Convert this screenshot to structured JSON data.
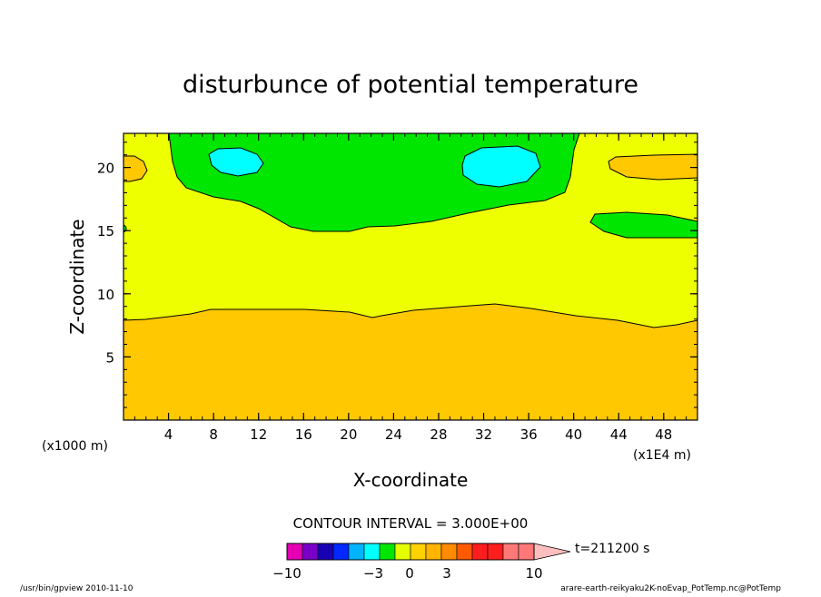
{
  "chart_data": {
    "type": "contour",
    "title": "disturbunce of potential temperature",
    "xlabel": "X-coordinate",
    "ylabel": "Z-coordinate",
    "x_unit_note": "(x1E4 m)",
    "y_unit_note": "(x1000 m)",
    "xlim": [
      0,
      51
    ],
    "ylim": [
      0,
      22.7
    ],
    "x_ticks": [
      "4",
      "8",
      "12",
      "16",
      "20",
      "24",
      "28",
      "32",
      "36",
      "40",
      "44",
      "48"
    ],
    "y_ticks": [
      "5",
      "10",
      "15",
      "20"
    ],
    "contour_interval_text": "CONTOUR INTERVAL = 3.000E+00",
    "colorbar": {
      "tick_labels": [
        "−10",
        "−3",
        "0",
        "3",
        "10"
      ],
      "colors": [
        "#e600b4",
        "#7a00c8",
        "#1a00b4",
        "#0028ff",
        "#00b4ff",
        "#00ffff",
        "#00e600",
        "#e6ff00",
        "#ffd200",
        "#ffb400",
        "#ff8c00",
        "#ff5a00",
        "#ff1e1e",
        "#ff1e1e",
        "#ff7878",
        "#ff7878",
        "#ffbebe"
      ]
    },
    "time_label": "t=211200 s",
    "regions": [
      {
        "name": "low-orange-layer",
        "level_color": "#ffc800",
        "z_top_boundary": [
          [
            0,
            7.9
          ],
          [
            2,
            8.0
          ],
          [
            4,
            8.3
          ],
          [
            6,
            8.5
          ],
          [
            8,
            8.8
          ],
          [
            12,
            8.8
          ],
          [
            16,
            8.8
          ],
          [
            20,
            8.6
          ],
          [
            22.5,
            8.2
          ],
          [
            26,
            8.8
          ],
          [
            30,
            9.1
          ],
          [
            33,
            9.3
          ],
          [
            36,
            8.9
          ],
          [
            40,
            8.4
          ],
          [
            44,
            8.0
          ],
          [
            47,
            7.4
          ],
          [
            49,
            7.6
          ],
          [
            51,
            7.9
          ]
        ]
      },
      {
        "name": "middle-yellow-layer",
        "level_color": "#eeff00"
      },
      {
        "name": "upper-green-region",
        "level_color": "#00e600",
        "z_bottom_boundary": [
          [
            4,
            22.7
          ],
          [
            4.5,
            20.5
          ],
          [
            5.5,
            18.4
          ],
          [
            8,
            17.6
          ],
          [
            12,
            17.1
          ],
          [
            15,
            15.5
          ],
          [
            16,
            15.1
          ],
          [
            20,
            15.1
          ],
          [
            24,
            15.5
          ],
          [
            28,
            15.4
          ],
          [
            32,
            16.1
          ],
          [
            36,
            17.1
          ],
          [
            39,
            18.6
          ],
          [
            40,
            21.5
          ],
          [
            40.5,
            22.7
          ]
        ]
      },
      {
        "name": "right-green-patch",
        "level_color": "#00e600",
        "center": [
          45,
          15.5
        ]
      },
      {
        "name": "cyan-cell-left",
        "level_color": "#00ffff",
        "center": [
          10,
          20.5
        ]
      },
      {
        "name": "cyan-cell-right",
        "level_color": "#00ffff",
        "center": [
          33.5,
          20.2
        ]
      },
      {
        "name": "orange-patch-left",
        "level_color": "#ffc800",
        "center": [
          1,
          20
        ]
      },
      {
        "name": "orange-patch-right",
        "level_color": "#ffc800",
        "center": [
          48,
          20
        ]
      }
    ]
  },
  "footer": {
    "left": "/usr/bin/gpview  2010-11-10",
    "right": "arare-earth-reikyaku2K-noEvap_PotTemp.nc@PotTemp"
  }
}
